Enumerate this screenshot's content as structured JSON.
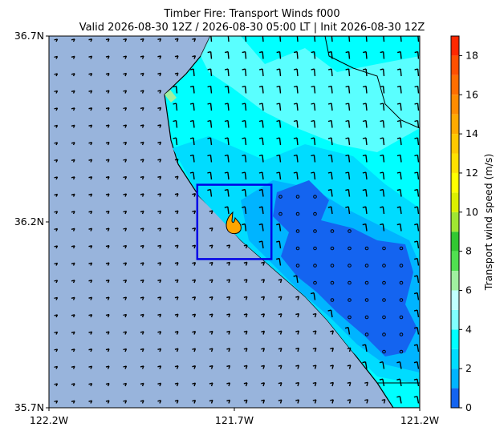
{
  "title": "Timber Fire: Transport Winds f000",
  "subtitle": "Valid 2026-08-30 12Z / 2026-08-30 05:00 LT | Init 2026-08-30 12Z",
  "map": {
    "xlim": [
      -122.2,
      -121.2
    ],
    "ylim": [
      35.7,
      36.7
    ],
    "xticks": [
      {
        "value": -122.2,
        "label": "122.2W"
      },
      {
        "value": -121.7,
        "label": "121.7W"
      },
      {
        "value": -121.2,
        "label": "121.2W"
      }
    ],
    "yticks": [
      {
        "value": 35.7,
        "label": "35.7N"
      },
      {
        "value": 36.2,
        "label": "36.2N"
      },
      {
        "value": 36.7,
        "label": "36.7N"
      }
    ],
    "box": {
      "lon": [
        -121.8,
        -121.6
      ],
      "lat": [
        36.1,
        36.3
      ],
      "color": "#0000e6"
    }
  },
  "colorbar": {
    "label": "Transport wind speed (m/s)",
    "lim": [
      0,
      19
    ],
    "ticks": [
      0,
      2,
      4,
      6,
      8,
      10,
      12,
      14,
      16,
      18
    ],
    "levels": [
      0,
      1,
      2,
      3,
      4,
      5,
      6,
      7,
      8,
      9,
      10,
      11,
      12,
      13,
      14,
      15,
      16,
      17,
      18,
      19
    ],
    "colors": [
      "#1464f0",
      "#00b4ff",
      "#00dcff",
      "#00ffff",
      "#80ffff",
      "#c0ffff",
      "#a0f0a0",
      "#50e050",
      "#32c832",
      "#a0e632",
      "#dcf000",
      "#ffff00",
      "#ffe100",
      "#ffc800",
      "#ffaa00",
      "#ff8c00",
      "#ff6e00",
      "#ff5000",
      "#ff2800"
    ]
  }
}
